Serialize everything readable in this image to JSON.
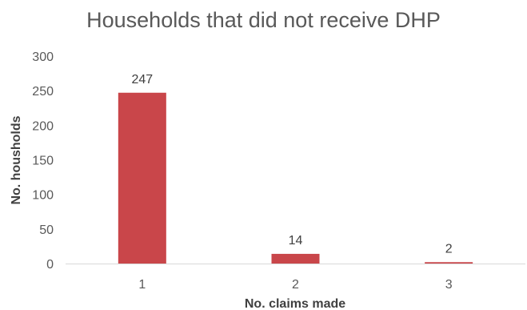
{
  "chart_data": {
    "type": "bar",
    "title": "Households that did not receive DHP",
    "xlabel": "No. claims made",
    "ylabel": "No. housholds",
    "categories": [
      "1",
      "2",
      "3"
    ],
    "values": [
      247,
      14,
      2
    ],
    "data_labels": [
      "247",
      "14",
      "2"
    ],
    "ylim": [
      0,
      300
    ],
    "yticks": [
      0,
      50,
      100,
      150,
      200,
      250,
      300
    ],
    "grid": false,
    "legend": "none",
    "bar_color": "#C9464A"
  }
}
